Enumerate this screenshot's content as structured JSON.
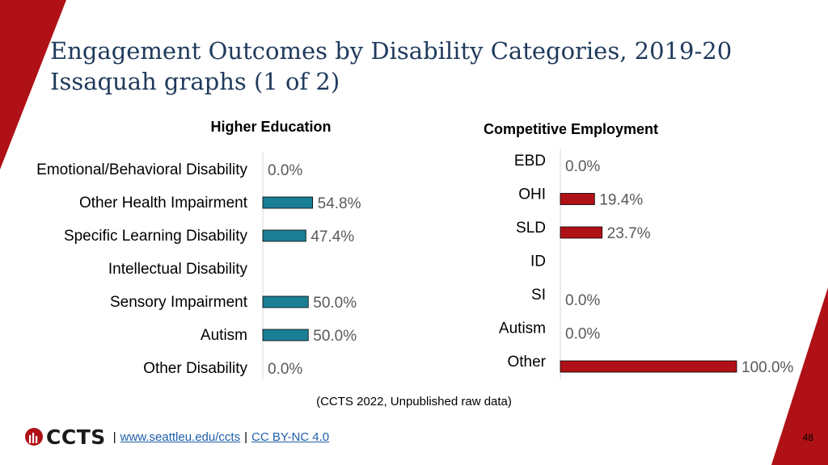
{
  "slide": {
    "title_line1": "Engagement Outcomes by Disability Categories, 2019-20",
    "title_line2": "Issaquah graphs (1 of 2)",
    "source_note": "(CCTS 2022, Unpublished raw data)",
    "footer": {
      "logo_text": "CCTS",
      "separator": "|",
      "link1": "www.seattleu.edu/ccts",
      "link2": "CC BY-NC 4.0"
    },
    "page_number": "48",
    "colors": {
      "accent": "#b01116",
      "title": "#1f3a5c",
      "bar_blue": "#1a7f94",
      "bar_red": "#b01116"
    }
  },
  "chart_data": [
    {
      "type": "bar",
      "orientation": "horizontal",
      "title": "Higher Education",
      "categories": [
        "Emotional/Behavioral Disability",
        "Other Health Impairment",
        "Specific Learning Disability",
        "Intellectual Disability",
        "Sensory Impairment",
        "Autism",
        "Other Disability"
      ],
      "values": [
        0.0,
        54.8,
        47.4,
        null,
        50.0,
        50.0,
        0.0
      ],
      "data_labels": [
        "0.0%",
        "54.8%",
        "47.4%",
        "",
        "50.0%",
        "50.0%",
        "0.0%"
      ],
      "xlim": [
        0,
        200
      ],
      "color": "#1a7f94",
      "grid": false
    },
    {
      "type": "bar",
      "orientation": "horizontal",
      "title": "Competitive Employment",
      "categories": [
        "EBD",
        "OHI",
        "SLD",
        "ID",
        "SI",
        "Autism",
        "Other"
      ],
      "values": [
        0.0,
        19.4,
        23.7,
        null,
        0.0,
        0.0,
        100.0
      ],
      "data_labels": [
        "0.0%",
        "19.4%",
        "23.7%",
        "",
        "0.0%",
        "0.0%",
        "100.0%"
      ],
      "xlim": [
        0,
        100
      ],
      "color": "#b01116",
      "grid": false
    }
  ]
}
